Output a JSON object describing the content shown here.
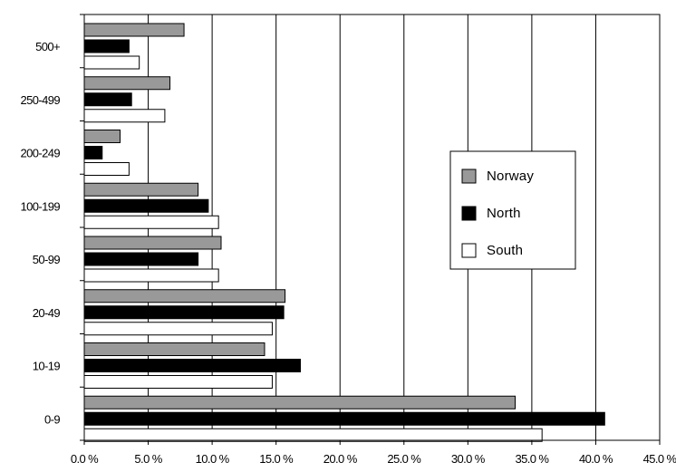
{
  "chart_data": {
    "type": "bar",
    "orientation": "horizontal",
    "categories": [
      "500+",
      "250-499",
      "200-249",
      "100-199",
      "50-99",
      "20-49",
      "10-19",
      "0-9"
    ],
    "series": [
      {
        "name": "Norway",
        "color": "#999999",
        "values": [
          7.8,
          6.7,
          2.8,
          8.9,
          10.7,
          15.7,
          14.1,
          33.7
        ]
      },
      {
        "name": "North",
        "color": "#000000",
        "values": [
          3.5,
          3.7,
          1.4,
          9.7,
          8.9,
          15.6,
          16.9,
          40.7
        ]
      },
      {
        "name": "South",
        "color": "#ffffff",
        "values": [
          4.3,
          6.3,
          3.5,
          10.5,
          10.5,
          14.7,
          14.7,
          35.8
        ]
      }
    ],
    "xlim": [
      0,
      45
    ],
    "xticks": [
      "0.0 %",
      "5.0 %",
      "10.0 %",
      "15.0 %",
      "20.0 %",
      "25.0 %",
      "30.0 %",
      "35.0 %",
      "40.0 %",
      "45.0 %"
    ],
    "xlabel": "",
    "ylabel": "",
    "title": "",
    "grid": "vertical",
    "legend_position": "right"
  }
}
